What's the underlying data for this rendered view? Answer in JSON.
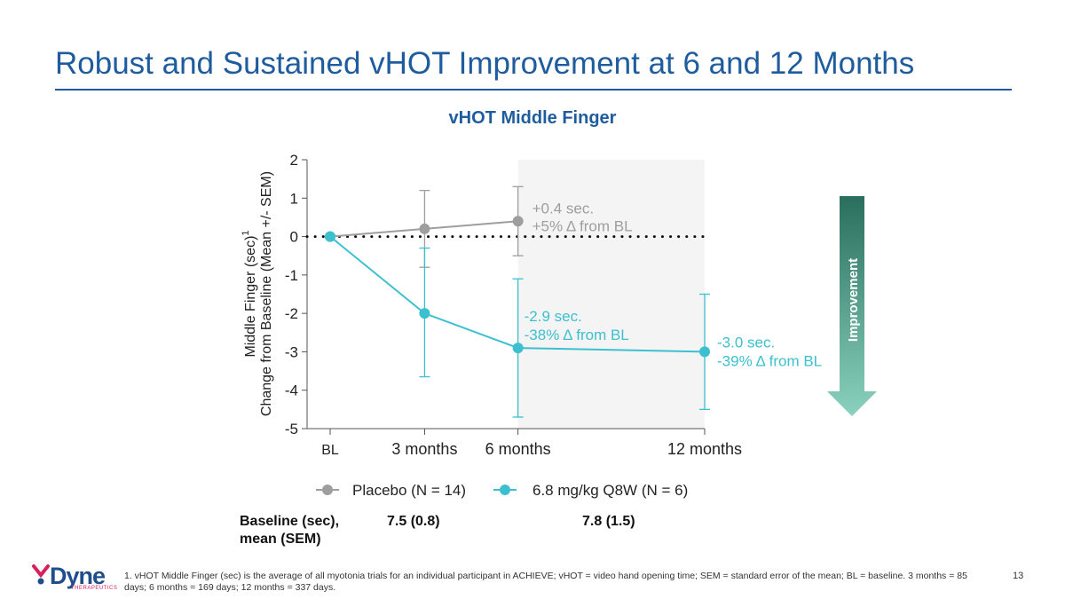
{
  "slide": {
    "title": "Robust and Sustained vHOT Improvement at 6 and 12 Months",
    "page_number": "13",
    "footnote": "1. vHOT Middle Finger (sec) is the average of all myotonia trials for an individual participant in ACHIEVE; vHOT = video hand opening time; SEM = standard error of the mean; BL = baseline. 3 months = 85 days; 6 months = 169 days; 12 months = 337 days.",
    "logo": {
      "name": "Dyne",
      "subtitle": "THERAPEUTICS"
    },
    "baseline": {
      "label_line1": "Baseline (sec),",
      "label_line2": "mean (SEM)",
      "placebo": "7.5 (0.8)",
      "treatment": "7.8 (1.5)"
    },
    "improvement_label": "Improvement"
  },
  "colors": {
    "title": "#1f5c9e",
    "placebo": "#9e9e9e",
    "treatment": "#3cc0d0",
    "arrow_top": "#2a6e5e",
    "arrow_bottom": "#8ad2bd",
    "shade": "#f4f4f4"
  },
  "chart_data": {
    "type": "line",
    "title": "vHOT Middle Finger",
    "ylabel_line1": "Middle Finger (sec)",
    "ylabel_superscript": "1",
    "ylabel_line2": "Change from Baseline (Mean +/-  SEM)",
    "ylim": [
      -5,
      2
    ],
    "yticks": [
      "2",
      "1",
      "0",
      "-1",
      "-2",
      "-3",
      "-4",
      "-5"
    ],
    "ytick_values": [
      2,
      1,
      0,
      -1,
      -2,
      -3,
      -4,
      -5
    ],
    "x_days": [
      0,
      85,
      169,
      337
    ],
    "categories": [
      "BL",
      "3 months",
      "6 months",
      "12 months"
    ],
    "shaded_region_days": [
      169,
      337
    ],
    "reference_line": 0,
    "series": [
      {
        "name": "Placebo (N = 14)",
        "color_key": "placebo",
        "x": [
          0,
          85,
          169
        ],
        "values": [
          0,
          0.2,
          0.4
        ],
        "err_low": [
          0,
          -0.8,
          -0.5
        ],
        "err_high": [
          0,
          1.2,
          1.3
        ],
        "annotation": {
          "line1": "+0.4 sec.",
          "line2": "+5% Δ from BL",
          "at_x": 169,
          "at_y": 0.4
        }
      },
      {
        "name": "6.8 mg/kg Q8W (N = 6)",
        "color_key": "treatment",
        "x": [
          0,
          85,
          169,
          337
        ],
        "values": [
          0,
          -2.0,
          -2.9,
          -3.0
        ],
        "err_low": [
          0,
          -3.65,
          -4.7,
          -4.5
        ],
        "err_high": [
          0,
          -0.3,
          -1.1,
          -1.5
        ],
        "annotations": [
          {
            "line1": "-2.9 sec.",
            "line2": "-38% Δ from BL",
            "at_x": 169,
            "at_y": -2.9
          },
          {
            "line1": "-3.0 sec.",
            "line2": "-39% Δ from BL",
            "at_x": 337,
            "at_y": -3.0
          }
        ]
      }
    ]
  }
}
